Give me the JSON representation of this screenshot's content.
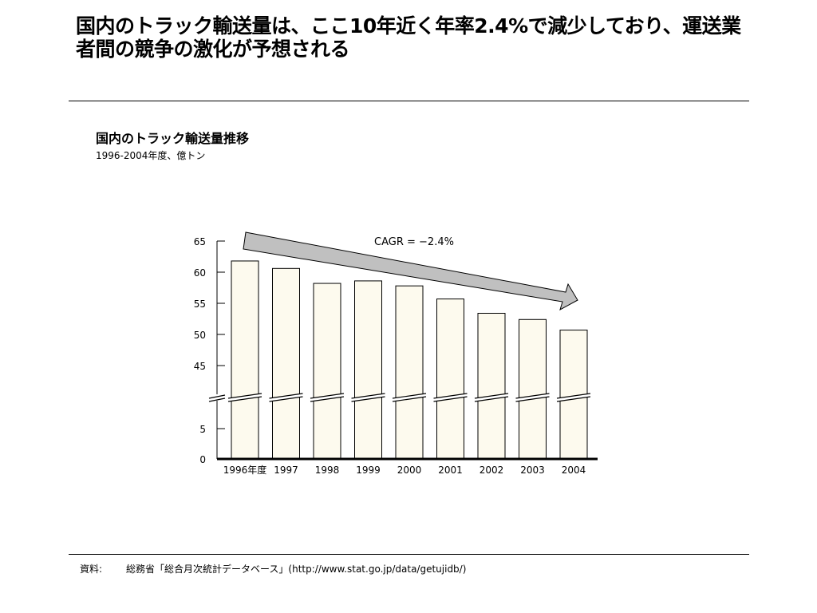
{
  "slide": {
    "headline": "国内のトラック輸送量は、ここ10年近く年率2.4%で減少しており、運送業者間の競争の激化が予想される",
    "footer": {
      "source_label": "資料:",
      "source_text": "総務省「総合月次統計データベース」(http://www.stat.go.jp/data/getujidb/)"
    }
  },
  "chart_data": {
    "type": "bar",
    "title": "国内のトラック輸送量推移",
    "subtitle": "1996-2004年度、億トン",
    "categories": [
      "1996年度",
      "1997",
      "1998",
      "1999",
      "2000",
      "2001",
      "2002",
      "2003",
      "2004"
    ],
    "values": [
      61.8,
      60.6,
      58.2,
      58.6,
      57.8,
      55.7,
      53.4,
      52.4,
      50.7
    ],
    "ylim": [
      0,
      65
    ],
    "axis_break": {
      "from": 5,
      "to": 45
    },
    "yticks": [
      "65",
      "60",
      "55",
      "50",
      "45",
      "5",
      "0"
    ],
    "annotation": "CAGR = −2.4%",
    "colors": {
      "bar_fill": "#fdfaee",
      "bar_stroke": "#000000",
      "arrow_fill": "#c0c0c0"
    },
    "grid": false,
    "legend": "none"
  }
}
